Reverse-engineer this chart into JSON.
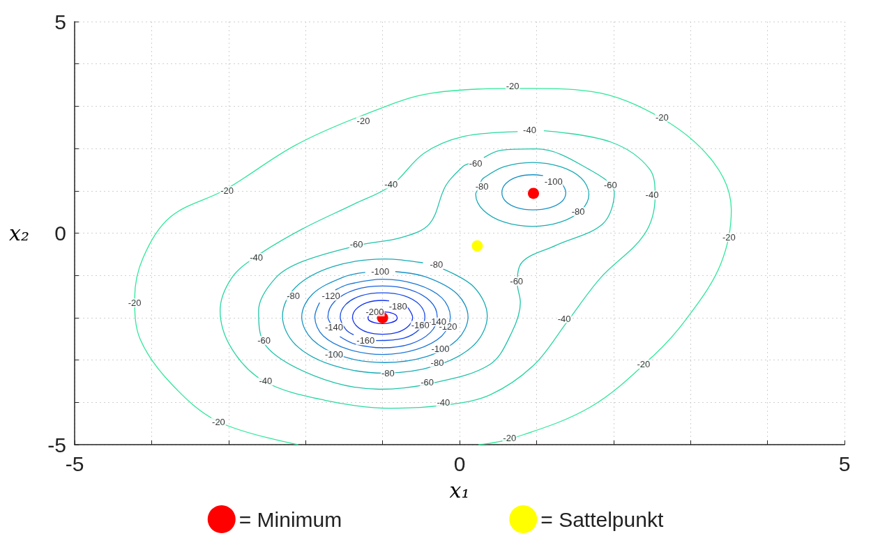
{
  "chart_data": {
    "type": "line",
    "xlabel": "x₁",
    "ylabel": "x₂",
    "xlim": [
      -5,
      5
    ],
    "ylim": [
      -5,
      5
    ],
    "xticks": [
      -5,
      {
        "value": -4,
        "label": null
      },
      {
        "value": -3,
        "label": null
      },
      {
        "value": -2,
        "label": null
      },
      {
        "value": -1,
        "label": null
      },
      0,
      {
        "value": 1,
        "label": null
      },
      {
        "value": 2,
        "label": null
      },
      {
        "value": 3,
        "label": null
      },
      {
        "value": 4,
        "label": null
      },
      5
    ],
    "yticks": [
      -5,
      {
        "value": -4,
        "label": null
      },
      {
        "value": -3,
        "label": null
      },
      {
        "value": -2,
        "label": null
      },
      {
        "value": -1,
        "label": null
      },
      0,
      {
        "value": 1,
        "label": null
      },
      {
        "value": 2,
        "label": null
      },
      {
        "value": 3,
        "label": null
      },
      {
        "value": 4,
        "label": null
      },
      5
    ],
    "grid": true,
    "legend": "bottom",
    "marker": "none",
    "series": [
      {
        "color": "#2ee89a",
        "x": [
          -2.1,
          -3.13,
          -3.75,
          -4.15,
          -4.22,
          -4.11,
          -3.75,
          -3.04,
          -2.14,
          -1.25,
          -0.36,
          0.85,
          1.7,
          2.63,
          3.3,
          3.53,
          3.39,
          2.95,
          2.5,
          1.7,
          0.69,
          0.25
        ],
        "values": [
          -5.0,
          -4.46,
          -3.55,
          -2.5,
          -1.54,
          -0.58,
          0.39,
          1.03,
          2.07,
          2.79,
          3.31,
          3.42,
          3.35,
          2.71,
          1.67,
          0.55,
          -0.74,
          -2.02,
          -2.93,
          -4.11,
          -4.85,
          -5.0
        ]
      },
      {
        "color": "#28d8a2",
        "x": [
          1.1,
          1.97,
          2.47,
          2.54,
          2.4,
          1.83,
          1.4,
          0.97,
          0.4,
          -0.17,
          -0.89,
          -1.75,
          -2.54,
          -2.96,
          -3.11,
          -2.96,
          -2.64,
          -2.04,
          -1.39,
          -0.89,
          -0.46,
          0.04,
          0.75
        ],
        "values": [
          2.42,
          2.15,
          1.51,
          0.87,
          -0.03,
          -1.06,
          -2.09,
          -3.11,
          -3.82,
          -4.06,
          -4.14,
          -3.95,
          -3.5,
          -2.73,
          -1.83,
          -1.06,
          -0.55,
          0.1,
          0.67,
          1.12,
          1.89,
          2.28,
          2.4
        ]
      },
      {
        "color": "#1fc4a8",
        "x": [
          0.32,
          0.54,
          1.0,
          1.68,
          2.01,
          1.86,
          1.25,
          0.82,
          0.75,
          0.79,
          0.68,
          0.39,
          -0.39,
          -1.04,
          -1.89,
          -2.54,
          -2.61,
          -2.39,
          -2.04,
          -1.32,
          -0.75,
          -0.39,
          -0.18,
          0.04,
          0.12
        ],
        "values": [
          1.79,
          1.96,
          1.99,
          1.51,
          0.95,
          0.22,
          -0.29,
          -0.67,
          -1.19,
          -1.64,
          -2.34,
          -3.11,
          -3.56,
          -3.69,
          -3.37,
          -2.6,
          -1.83,
          -1.06,
          -0.67,
          -0.29,
          -0.1,
          0.22,
          1.12,
          1.57,
          1.64
        ]
      },
      {
        "color": "#16aab4",
        "x": [
          -0.48,
          -0.97,
          -1.64,
          -2.13,
          -2.3,
          -2.13,
          -1.64,
          -0.97,
          -0.3,
          0.19,
          0.36,
          0.19,
          -0.21
        ],
        "values": [
          -0.7,
          -0.61,
          -0.79,
          -1.28,
          -1.96,
          -2.64,
          -3.13,
          -3.31,
          -3.13,
          -2.64,
          -1.96,
          -1.28,
          -0.85
        ]
      },
      {
        "color": "#16aab4",
        "x": [
          0.24,
          0.21,
          0.31,
          0.58,
          0.95,
          1.31,
          1.58,
          1.68,
          1.58,
          1.31,
          0.95,
          0.58,
          0.31,
          0.27
        ],
        "values": [
          1.04,
          0.92,
          0.54,
          0.26,
          0.16,
          0.26,
          0.54,
          0.92,
          1.3,
          1.57,
          1.67,
          1.57,
          1.3,
          1.2
        ]
      },
      {
        "color": "#1692c6",
        "x": [
          -1.23,
          -1.51,
          -1.91,
          -2.05,
          -1.91,
          -1.51,
          -0.97,
          -0.43,
          -0.03,
          0.11,
          -0.03,
          -0.43,
          -0.83
        ],
        "values": [
          -0.93,
          -1.04,
          -1.44,
          -1.98,
          -2.52,
          -2.92,
          -3.06,
          -2.92,
          -2.52,
          -1.98,
          -1.44,
          -1.04,
          -0.91
        ]
      },
      {
        "color": "#1692c6",
        "x": [
          1.08,
          0.96,
          0.75,
          0.6,
          0.55,
          0.6,
          0.75,
          0.96,
          1.17,
          1.33,
          1.38,
          1.33
        ],
        "values": [
          1.36,
          1.38,
          1.33,
          1.17,
          0.96,
          0.75,
          0.6,
          0.55,
          0.6,
          0.75,
          0.96,
          1.17
        ]
      },
      {
        "color": "#1a78d6",
        "x": [
          -1.82,
          -1.88,
          -1.77,
          -1.44,
          -1.0,
          -0.56,
          -0.23,
          -0.12,
          -0.23,
          -0.56,
          -1.0,
          -1.44,
          -1.61
        ],
        "values": [
          -1.65,
          -1.98,
          -2.43,
          -2.75,
          -2.87,
          -2.75,
          -2.43,
          -1.98,
          -1.53,
          -1.21,
          -1.09,
          -1.21,
          -1.34
        ]
      },
      {
        "color": "#1a60e0",
        "x": [
          -1.55,
          -1.36,
          -1.0,
          -0.64,
          -0.38,
          -0.29,
          -0.38,
          -0.64,
          -1.0,
          -1.36,
          -1.62,
          -1.71,
          -1.68
        ],
        "values": [
          -2.45,
          -2.62,
          -2.71,
          -2.62,
          -2.35,
          -1.98,
          -1.61,
          -1.34,
          -1.25,
          -1.34,
          -1.61,
          -1.98,
          -2.12
        ]
      },
      {
        "color": "#1448ea",
        "x": [
          -1.08,
          -0.72,
          -0.52,
          -0.45,
          -0.52,
          -0.72,
          -1.0,
          -1.28,
          -1.48,
          -1.55,
          -1.48,
          -1.38
        ],
        "values": [
          -2.54,
          -2.48,
          -2.27,
          -1.98,
          -1.69,
          -1.48,
          -1.41,
          -1.48,
          -1.69,
          -1.98,
          -2.27,
          -2.4
        ]
      },
      {
        "color": "#1032f2",
        "x": [
          -0.92,
          -1.0,
          -1.2,
          -1.34,
          -1.39,
          -1.34,
          -1.2,
          -1.0,
          -0.8,
          -0.66,
          -0.61,
          -0.66,
          -0.7
        ],
        "values": [
          -1.6,
          -1.59,
          -1.64,
          -1.79,
          -1.99,
          -2.19,
          -2.34,
          -2.39,
          -2.34,
          -2.19,
          -1.99,
          -1.79,
          -1.72
        ]
      },
      {
        "color": "#0a1af8",
        "x": [
          -1.15,
          -1.17,
          -1.19,
          -1.17,
          -1.1,
          -1.0,
          -0.9,
          -0.83,
          -0.81,
          -0.83,
          -0.9,
          -1.0
        ],
        "values": [
          -1.91,
          -1.93,
          -2.0,
          -2.07,
          -2.12,
          -2.14,
          -2.12,
          -2.07,
          -2.0,
          -1.93,
          -1.88,
          -1.86
        ]
      },
      {
        "type": "scatter",
        "name": "= Minimum",
        "color": "#ff0000",
        "marker": "circle",
        "x": [
          -1.0,
          0.96
        ],
        "values": [
          -2.0,
          0.94
        ]
      },
      {
        "type": "scatter",
        "name": "= Sattelpunkt",
        "color": "#ffff00",
        "marker": "circle",
        "x": [
          0.23
        ],
        "values": [
          -0.3
        ]
      }
    ],
    "annotations": [
      {
        "text": "-20",
        "x": 0.69,
        "y": 3.47
      },
      {
        "text": "-20",
        "x": -1.25,
        "y": 2.66
      },
      {
        "text": "-20",
        "x": -3.02,
        "y": 1.0
      },
      {
        "text": "-20",
        "x": -4.22,
        "y": -1.65
      },
      {
        "text": "-20",
        "x": -3.13,
        "y": -4.46
      },
      {
        "text": "-20",
        "x": 0.65,
        "y": -4.85
      },
      {
        "text": "-20",
        "x": 2.39,
        "y": -3.1
      },
      {
        "text": "-20",
        "x": 3.5,
        "y": -0.1
      },
      {
        "text": "-20",
        "x": 2.63,
        "y": 2.74
      },
      {
        "text": "-40",
        "x": 0.91,
        "y": 2.44
      },
      {
        "text": "-40",
        "x": -0.89,
        "y": 1.16
      },
      {
        "text": "-40",
        "x": -2.64,
        "y": -0.58
      },
      {
        "text": "-40",
        "x": -2.52,
        "y": -3.5
      },
      {
        "text": "-40",
        "x": -0.21,
        "y": -4.0
      },
      {
        "text": "-40",
        "x": 1.36,
        "y": -2.02
      },
      {
        "text": "-40",
        "x": 2.5,
        "y": 0.9
      },
      {
        "text": "-60",
        "x": 0.21,
        "y": 1.64
      },
      {
        "text": "-60",
        "x": -1.34,
        "y": -0.26
      },
      {
        "text": "-60",
        "x": -2.54,
        "y": -2.54
      },
      {
        "text": "-60",
        "x": -0.42,
        "y": -3.52
      },
      {
        "text": "-60",
        "x": 0.74,
        "y": -1.14
      },
      {
        "text": "-60",
        "x": 1.96,
        "y": 1.14
      },
      {
        "text": "-80",
        "x": -0.3,
        "y": -0.74
      },
      {
        "text": "-80",
        "x": -2.16,
        "y": -1.48
      },
      {
        "text": "-80",
        "x": -0.93,
        "y": -3.31
      },
      {
        "text": "-80",
        "x": -0.29,
        "y": -3.07
      },
      {
        "text": "-80",
        "x": 0.29,
        "y": 1.11
      },
      {
        "text": "-80",
        "x": 1.54,
        "y": 0.51
      },
      {
        "text": "-100",
        "x": -1.03,
        "y": -0.91
      },
      {
        "text": "-100",
        "x": -1.63,
        "y": -2.87
      },
      {
        "text": "-100",
        "x": -0.25,
        "y": -2.74
      },
      {
        "text": "-100",
        "x": 1.22,
        "y": 1.22
      },
      {
        "text": "-120",
        "x": -1.67,
        "y": -1.49
      },
      {
        "text": "-120",
        "x": -0.15,
        "y": -2.21
      },
      {
        "text": "-140",
        "x": -1.63,
        "y": -2.23
      },
      {
        "text": "-140",
        "x": -0.29,
        "y": -2.1
      },
      {
        "text": "-160",
        "x": -1.22,
        "y": -2.54
      },
      {
        "text": "-160",
        "x": -0.51,
        "y": -2.18
      },
      {
        "text": "-180",
        "x": -0.8,
        "y": -1.73
      },
      {
        "text": "-200",
        "x": -1.1,
        "y": -1.86
      }
    ]
  }
}
